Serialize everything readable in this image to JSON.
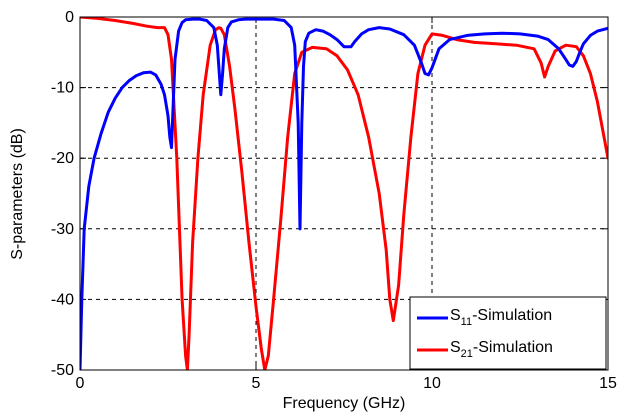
{
  "chart_data": {
    "type": "line",
    "xlabel": "Frequency (GHz)",
    "ylabel": "S-parameters (dB)",
    "xlim": [
      0,
      15
    ],
    "ylim": [
      -50,
      0
    ],
    "xticks": [
      0,
      5,
      10,
      15
    ],
    "yticks": [
      0,
      -10,
      -20,
      -30,
      -40,
      -50
    ],
    "grid": true,
    "legend_position": "bottom-right",
    "series": [
      {
        "name_main": "S",
        "name_sub": "11",
        "name_rest": "-Simulation",
        "color": "#0000ff",
        "x": [
          0.0,
          0.05,
          0.12,
          0.25,
          0.4,
          0.6,
          0.8,
          1.0,
          1.2,
          1.4,
          1.6,
          1.8,
          2.0,
          2.15,
          2.3,
          2.4,
          2.5,
          2.55,
          2.6,
          2.65,
          2.7,
          2.8,
          2.9,
          3.0,
          3.2,
          3.4,
          3.6,
          3.8,
          3.9,
          4.0,
          4.05,
          4.1,
          4.2,
          4.3,
          4.5,
          4.7,
          5.0,
          5.5,
          5.8,
          6.0,
          6.1,
          6.2,
          6.25,
          6.3,
          6.35,
          6.4,
          6.5,
          6.7,
          6.9,
          7.1,
          7.3,
          7.5,
          7.7,
          7.8,
          8.0,
          8.2,
          8.5,
          8.8,
          9.2,
          9.5,
          9.7,
          9.8,
          9.9,
          10.0,
          10.2,
          10.5,
          11.0,
          11.5,
          12.0,
          12.5,
          13.0,
          13.3,
          13.6,
          13.8,
          13.9,
          14.0,
          14.1,
          14.2,
          14.3,
          14.5,
          14.7,
          15.0
        ],
        "values": [
          -50.0,
          -40.0,
          -30.0,
          -24.0,
          -20.0,
          -16.5,
          -13.5,
          -11.5,
          -10.0,
          -9.0,
          -8.3,
          -7.9,
          -7.8,
          -8.2,
          -9.5,
          -11.0,
          -14.0,
          -17.0,
          -18.5,
          -12.0,
          -6.0,
          -2.0,
          -0.8,
          -0.4,
          -0.3,
          -0.3,
          -0.5,
          -1.5,
          -4.0,
          -11.0,
          -8.0,
          -4.5,
          -1.5,
          -0.7,
          -0.4,
          -0.3,
          -0.3,
          -0.3,
          -0.5,
          -1.5,
          -4.0,
          -15.0,
          -30.0,
          -15.0,
          -7.0,
          -3.5,
          -2.3,
          -1.8,
          -2.0,
          -2.5,
          -3.2,
          -4.2,
          -4.2,
          -3.5,
          -2.4,
          -1.8,
          -1.5,
          -1.7,
          -2.5,
          -4.0,
          -6.5,
          -8.0,
          -8.2,
          -7.2,
          -4.5,
          -3.2,
          -2.6,
          -2.4,
          -2.3,
          -2.4,
          -2.7,
          -3.2,
          -4.5,
          -6.0,
          -6.8,
          -7.0,
          -6.3,
          -5.0,
          -3.8,
          -2.6,
          -2.0,
          -1.6
        ]
      },
      {
        "name_main": "S",
        "name_sub": "21",
        "name_rest": "-Simulation",
        "color": "#ff0000",
        "x": [
          0.0,
          0.5,
          1.0,
          1.5,
          1.9,
          2.2,
          2.4,
          2.5,
          2.6,
          2.75,
          2.9,
          3.0,
          3.05,
          3.1,
          3.2,
          3.35,
          3.5,
          3.7,
          3.85,
          3.95,
          4.0,
          4.1,
          4.25,
          4.4,
          4.6,
          4.8,
          5.0,
          5.15,
          5.25,
          5.35,
          5.5,
          5.7,
          5.9,
          6.1,
          6.3,
          6.6,
          7.0,
          7.3,
          7.6,
          7.9,
          8.2,
          8.5,
          8.7,
          8.8,
          8.9,
          9.05,
          9.2,
          9.4,
          9.6,
          9.8,
          10.0,
          10.3,
          10.7,
          11.2,
          11.8,
          12.4,
          12.9,
          13.1,
          13.2,
          13.3,
          13.5,
          13.8,
          14.1,
          14.3,
          14.5,
          14.7,
          14.85,
          15.0
        ],
        "values": [
          0.0,
          -0.2,
          -0.5,
          -0.9,
          -1.3,
          -1.5,
          -1.5,
          -2.5,
          -6.0,
          -20.0,
          -40.0,
          -48.0,
          -50.0,
          -45.0,
          -32.0,
          -20.0,
          -11.0,
          -4.0,
          -1.8,
          -1.5,
          -1.6,
          -2.5,
          -7.0,
          -13.0,
          -22.0,
          -32.0,
          -41.0,
          -47.0,
          -50.0,
          -48.0,
          -40.0,
          -29.0,
          -17.0,
          -8.0,
          -5.0,
          -4.3,
          -4.5,
          -5.5,
          -7.5,
          -11.0,
          -17.0,
          -25.0,
          -33.0,
          -40.0,
          -43.0,
          -38.0,
          -28.0,
          -17.0,
          -8.0,
          -4.0,
          -2.4,
          -2.6,
          -3.2,
          -3.6,
          -3.8,
          -4.0,
          -4.5,
          -6.5,
          -8.5,
          -7.0,
          -4.8,
          -4.0,
          -4.2,
          -5.5,
          -8.0,
          -12.0,
          -16.0,
          -20.0
        ]
      }
    ]
  }
}
